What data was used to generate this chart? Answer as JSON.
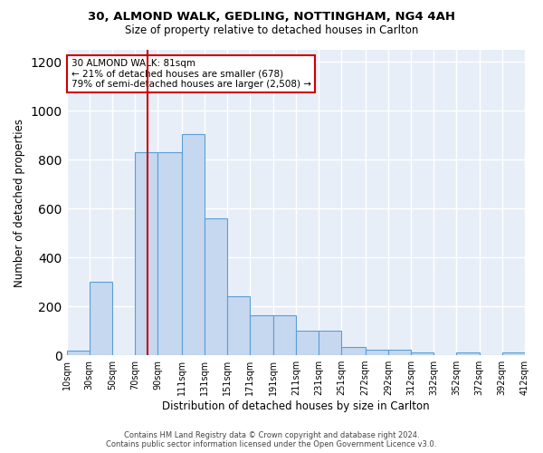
{
  "title1": "30, ALMOND WALK, GEDLING, NOTTINGHAM, NG4 4AH",
  "title2": "Size of property relative to detached houses in Carlton",
  "xlabel": "Distribution of detached houses by size in Carlton",
  "ylabel": "Number of detached properties",
  "footer1": "Contains HM Land Registry data © Crown copyright and database right 2024.",
  "footer2": "Contains public sector information licensed under the Open Government Licence v3.0.",
  "annotation_line1": "30 ALMOND WALK: 81sqm",
  "annotation_line2": "← 21% of detached houses are smaller (678)",
  "annotation_line3": "79% of semi-detached houses are larger (2,508) →",
  "bin_edges": [
    10,
    30,
    50,
    70,
    90,
    111,
    131,
    151,
    171,
    191,
    211,
    231,
    251,
    272,
    292,
    312,
    332,
    352,
    372,
    392,
    412
  ],
  "bar_heights": [
    20,
    300,
    0,
    830,
    830,
    905,
    560,
    240,
    165,
    165,
    100,
    100,
    32,
    22,
    22,
    10,
    0,
    10,
    0,
    10
  ],
  "bar_color": "#c5d8f0",
  "bar_edge_color": "#5a9fd4",
  "vline_color": "#cc0000",
  "vline_x": 81,
  "ylim": [
    0,
    1250
  ],
  "yticks": [
    0,
    200,
    400,
    600,
    800,
    1000,
    1200
  ],
  "annotation_box_facecolor": "#ffffff",
  "annotation_box_edgecolor": "#cc0000",
  "fig_facecolor": "#ffffff",
  "axes_facecolor": "#e8eef8"
}
